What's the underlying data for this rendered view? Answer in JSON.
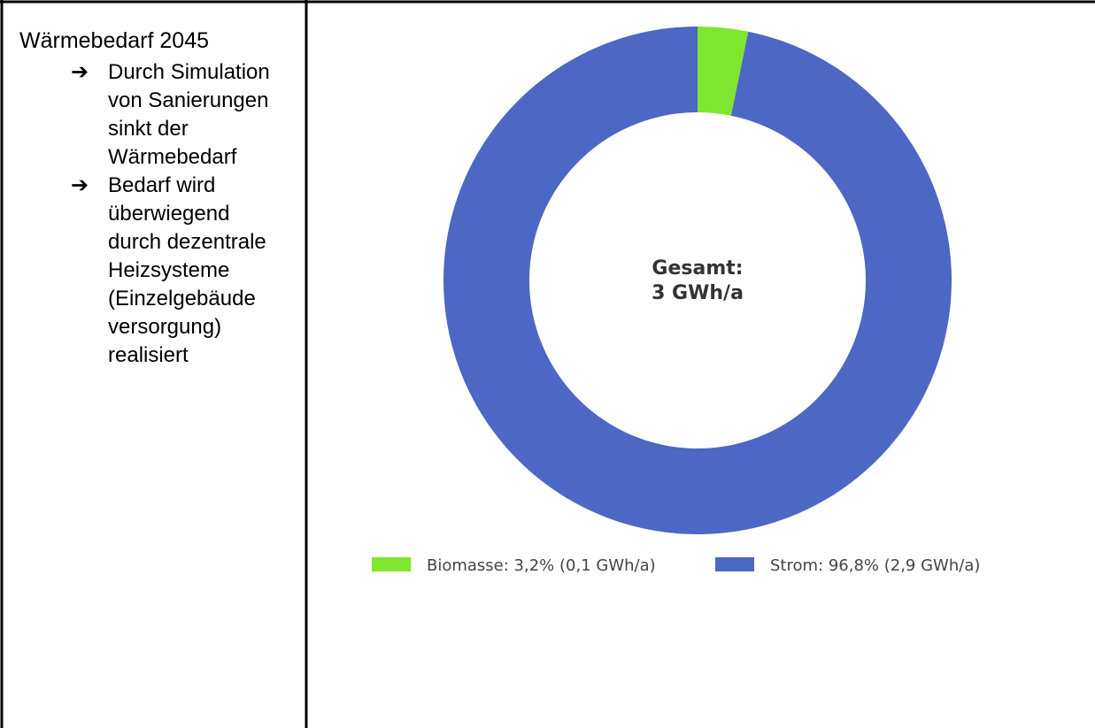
{
  "sidebar": {
    "title": "Wärmebedarf 2045",
    "bullets": [
      "Durch Simulation von Sanierungen sinkt der Wärmebedarf",
      "Bedarf wird überwiegend durch dezentrale Heizsysteme (Einzelgebäude versorgung) realisiert"
    ]
  },
  "chart_data": {
    "type": "donut",
    "center_label": [
      "Gesamt:",
      "3 GWh/a"
    ],
    "categories": [
      "Biomasse: 3,2% (0,1 GWh/a)",
      "Strom: 96,8% (2,9 GWh/a)"
    ],
    "values": [
      3.2,
      96.8
    ],
    "colors": [
      "#7ee62e",
      "#4c67c4"
    ]
  }
}
